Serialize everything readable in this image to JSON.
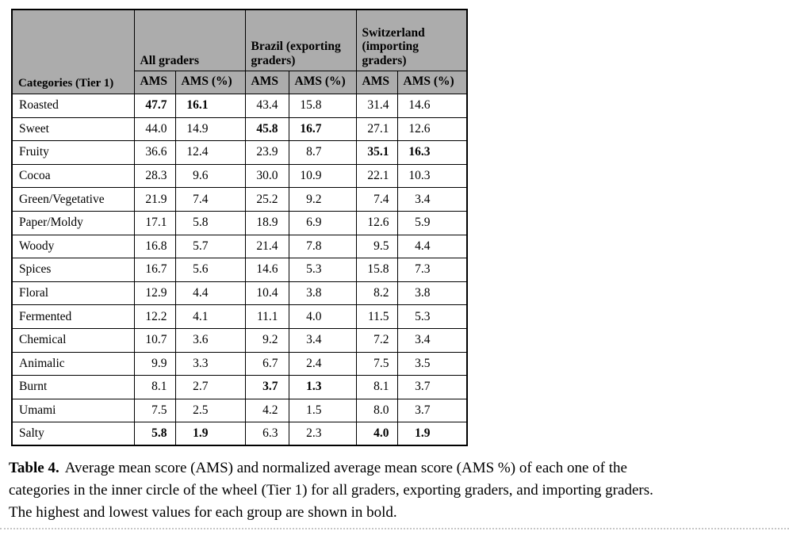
{
  "colors": {
    "header_bg": "#acacac",
    "border": "#000000",
    "dotted_rule": "#c6c6c6"
  },
  "table": {
    "category_header": "Categories (Tier 1)",
    "col_groups": [
      {
        "label": "All graders"
      },
      {
        "label": "Brazil (exporting graders)"
      },
      {
        "label": "Switzerland (importing graders)"
      }
    ],
    "sub_headers": [
      "AMS",
      "AMS (%)",
      "AMS",
      "AMS (%)",
      "AMS",
      "AMS (%)"
    ],
    "rows": [
      {
        "category": "Roasted",
        "values": [
          "47.7",
          "16.1",
          "43.4",
          "15.8",
          "31.4",
          "14.6"
        ],
        "bold": [
          true,
          true,
          false,
          false,
          false,
          false
        ]
      },
      {
        "category": "Sweet",
        "values": [
          "44.0",
          "14.9",
          "45.8",
          "16.7",
          "27.1",
          "12.6"
        ],
        "bold": [
          false,
          false,
          true,
          true,
          false,
          false
        ]
      },
      {
        "category": "Fruity",
        "values": [
          "36.6",
          "12.4",
          "23.9",
          "8.7",
          "35.1",
          "16.3"
        ],
        "bold": [
          false,
          false,
          false,
          false,
          true,
          true
        ]
      },
      {
        "category": "Cocoa",
        "values": [
          "28.3",
          "9.6",
          "30.0",
          "10.9",
          "22.1",
          "10.3"
        ],
        "bold": [
          false,
          false,
          false,
          false,
          false,
          false
        ]
      },
      {
        "category": "Green/Vegetative",
        "values": [
          "21.9",
          "7.4",
          "25.2",
          "9.2",
          "7.4",
          "3.4"
        ],
        "bold": [
          false,
          false,
          false,
          false,
          false,
          false
        ]
      },
      {
        "category": "Paper/Moldy",
        "values": [
          "17.1",
          "5.8",
          "18.9",
          "6.9",
          "12.6",
          "5.9"
        ],
        "bold": [
          false,
          false,
          false,
          false,
          false,
          false
        ]
      },
      {
        "category": "Woody",
        "values": [
          "16.8",
          "5.7",
          "21.4",
          "7.8",
          "9.5",
          "4.4"
        ],
        "bold": [
          false,
          false,
          false,
          false,
          false,
          false
        ]
      },
      {
        "category": "Spices",
        "values": [
          "16.7",
          "5.6",
          "14.6",
          "5.3",
          "15.8",
          "7.3"
        ],
        "bold": [
          false,
          false,
          false,
          false,
          false,
          false
        ]
      },
      {
        "category": "Floral",
        "values": [
          "12.9",
          "4.4",
          "10.4",
          "3.8",
          "8.2",
          "3.8"
        ],
        "bold": [
          false,
          false,
          false,
          false,
          false,
          false
        ]
      },
      {
        "category": "Fermented",
        "values": [
          "12.2",
          "4.1",
          "11.1",
          "4.0",
          "11.5",
          "5.3"
        ],
        "bold": [
          false,
          false,
          false,
          false,
          false,
          false
        ]
      },
      {
        "category": "Chemical",
        "values": [
          "10.7",
          "3.6",
          "9.2",
          "3.4",
          "7.2",
          "3.4"
        ],
        "bold": [
          false,
          false,
          false,
          false,
          false,
          false
        ]
      },
      {
        "category": "Animalic",
        "values": [
          "9.9",
          "3.3",
          "6.7",
          "2.4",
          "7.5",
          "3.5"
        ],
        "bold": [
          false,
          false,
          false,
          false,
          false,
          false
        ]
      },
      {
        "category": "Burnt",
        "values": [
          "8.1",
          "2.7",
          "3.7",
          "1.3",
          "8.1",
          "3.7"
        ],
        "bold": [
          false,
          false,
          true,
          true,
          false,
          false
        ]
      },
      {
        "category": "Umami",
        "values": [
          "7.5",
          "2.5",
          "4.2",
          "1.5",
          "8.0",
          "3.7"
        ],
        "bold": [
          false,
          false,
          false,
          false,
          false,
          false
        ]
      },
      {
        "category": "Salty",
        "values": [
          "5.8",
          "1.9",
          "6.3",
          "2.3",
          "4.0",
          "1.9"
        ],
        "bold": [
          true,
          true,
          false,
          false,
          true,
          true
        ]
      }
    ]
  },
  "caption": {
    "label": "Table 4.",
    "lines": [
      "Average mean score (AMS) and normalized average mean score (AMS %) of each one of the",
      "categories in the inner circle of the wheel (Tier 1) for all graders, exporting graders, and importing graders.",
      "The highest and lowest values for each group are shown in bold."
    ]
  }
}
